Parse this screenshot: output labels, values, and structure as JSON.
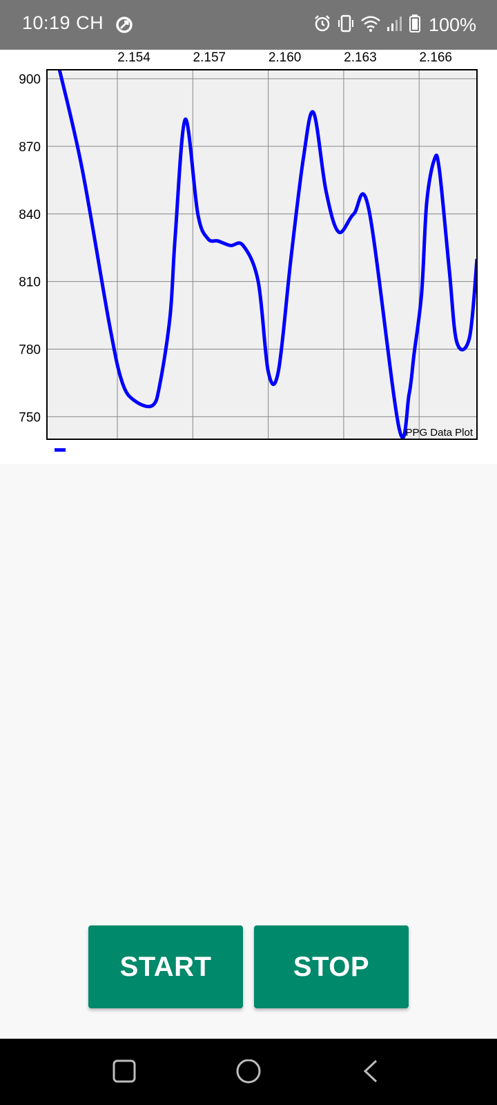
{
  "status_bar": {
    "time": "10:19 CH",
    "battery_text": "100%",
    "icons": [
      "data-saver-icon",
      "alarm-icon",
      "vibrate-icon",
      "wifi-icon",
      "signal-icon",
      "battery-icon"
    ]
  },
  "colors": {
    "series": "#0000ff",
    "plot_background": "#f0f0f0",
    "grid": "#888888",
    "button": "#00896a",
    "status_bar": "#757575"
  },
  "chart_data": {
    "type": "line",
    "title": "PPG Data Plot",
    "xlabel": "",
    "ylabel": "",
    "x_ticks": [
      "2.154",
      "2.157",
      "2.160",
      "2.163",
      "2.166"
    ],
    "x_tick_values": [
      2.154,
      2.157,
      2.16,
      2.163,
      2.166
    ],
    "y_ticks": [
      "900",
      "870",
      "840",
      "810",
      "780",
      "750"
    ],
    "y_tick_values": [
      900,
      870,
      840,
      810,
      780,
      750
    ],
    "xlim": [
      2.1512,
      2.1683
    ],
    "ylim": [
      740,
      904
    ],
    "grid": true,
    "series": [
      {
        "x": [
          2.1517,
          2.1526,
          2.1537,
          2.1542,
          2.1547,
          2.1554,
          2.1557,
          2.1561,
          2.1563,
          2.1567,
          2.1572,
          2.1576,
          2.158,
          2.1585,
          2.159,
          2.1596,
          2.16,
          2.1604,
          2.1609,
          2.1614,
          2.1618,
          2.1623,
          2.1628,
          2.1634,
          2.164,
          2.1652,
          2.1656,
          2.1658,
          2.1661,
          2.1663,
          2.1666,
          2.1668,
          2.1672,
          2.1675,
          2.168,
          2.1683
        ],
        "y": [
          904,
          860,
          790,
          765,
          757,
          755,
          765,
          795,
          830,
          882,
          840,
          829,
          828,
          826,
          826,
          810,
          770,
          770,
          820,
          865,
          885,
          850,
          832,
          840,
          842,
          745,
          760,
          778,
          805,
          845,
          864,
          860,
          815,
          783,
          785,
          820
        ]
      }
    ]
  },
  "buttons": {
    "start_label": "START",
    "stop_label": "STOP"
  },
  "nav": {
    "icons": [
      "recents-icon",
      "home-icon",
      "back-icon"
    ]
  }
}
